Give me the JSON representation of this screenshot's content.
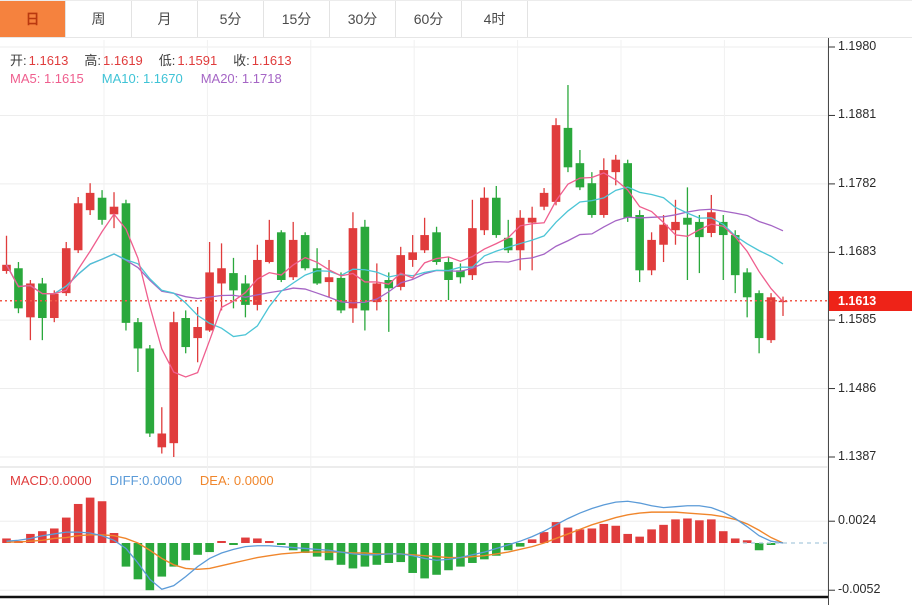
{
  "toolbar": {
    "tabs": [
      {
        "label": "日",
        "active": true
      },
      {
        "label": "周",
        "active": false
      },
      {
        "label": "月",
        "active": false
      },
      {
        "label": "5分",
        "active": false
      },
      {
        "label": "15分",
        "active": false
      },
      {
        "label": "30分",
        "active": false
      },
      {
        "label": "60分",
        "active": false
      },
      {
        "label": "4时",
        "active": false
      }
    ]
  },
  "main_chart": {
    "legend": {
      "open_label": "开:",
      "open": "1.1613",
      "high_label": "高:",
      "high": "1.1619",
      "low_label": "低:",
      "low": "1.1591",
      "close_label": "收:",
      "close": "1.1613"
    },
    "ma_legend": {
      "ma5_label": "MA5:",
      "ma5": "1.1615",
      "ma10_label": "MA10:",
      "ma10": "1.1670",
      "ma20_label": "MA20:",
      "ma20": "1.1718"
    },
    "y_axis": [
      "1.1980",
      "1.1881",
      "1.1782",
      "1.1683",
      "1.1585",
      "1.1486",
      "1.1387"
    ],
    "price_tag": "1.1613"
  },
  "macd_panel": {
    "legend": {
      "macd_label": "MACD:",
      "macd": "0.0000",
      "diff_label": "DIFF:",
      "diff": "0.0000",
      "dea_label": "DEA:",
      "dea": "0.0000"
    },
    "y_axis": [
      "0.0024",
      "-0.0052"
    ]
  },
  "chart_data": {
    "type": "candlestick+macd",
    "timeframe": "日",
    "price_axis": {
      "min": 1.1387,
      "max": 1.198,
      "ticks": [
        1.198,
        1.1881,
        1.1782,
        1.1683,
        1.1585,
        1.1486,
        1.1387
      ]
    },
    "current_price": 1.1613,
    "last_bar": {
      "open": 1.1613,
      "high": 1.1619,
      "low": 1.1591,
      "close": 1.1613
    },
    "ma_periods": [
      5,
      10,
      20
    ],
    "ma_last_values": {
      "ma5": 1.1615,
      "ma10": 1.167,
      "ma20": 1.1718
    },
    "candles_ohlc": [
      [
        1.1656,
        1.1707,
        1.1652,
        1.1665
      ],
      [
        1.166,
        1.1669,
        1.1595,
        1.1602
      ],
      [
        1.1589,
        1.1643,
        1.1556,
        1.1638
      ],
      [
        1.1638,
        1.1646,
        1.1556,
        1.1588
      ],
      [
        1.1588,
        1.1628,
        1.1582,
        1.1623
      ],
      [
        1.1624,
        1.1698,
        1.162,
        1.1689
      ],
      [
        1.1686,
        1.1763,
        1.1682,
        1.1754
      ],
      [
        1.1744,
        1.1783,
        1.1737,
        1.1769
      ],
      [
        1.1762,
        1.1773,
        1.1723,
        1.173
      ],
      [
        1.1738,
        1.177,
        1.1718,
        1.1749
      ],
      [
        1.1754,
        1.1759,
        1.157,
        1.1581
      ],
      [
        1.1582,
        1.1588,
        1.151,
        1.1544
      ],
      [
        1.1544,
        1.1549,
        1.1416,
        1.1421
      ],
      [
        1.1401,
        1.1459,
        1.1392,
        1.1421
      ],
      [
        1.1407,
        1.1597,
        1.1387,
        1.1582
      ],
      [
        1.1588,
        1.1599,
        1.1537,
        1.1546
      ],
      [
        1.1559,
        1.1604,
        1.1524,
        1.1575
      ],
      [
        1.157,
        1.1698,
        1.1568,
        1.1654
      ],
      [
        1.1638,
        1.1696,
        1.1599,
        1.166
      ],
      [
        1.1653,
        1.1675,
        1.1602,
        1.1628
      ],
      [
        1.1638,
        1.165,
        1.1589,
        1.1607
      ],
      [
        1.1607,
        1.1694,
        1.1599,
        1.1672
      ],
      [
        1.1669,
        1.173,
        1.1667,
        1.1701
      ],
      [
        1.1712,
        1.1715,
        1.164,
        1.1643
      ],
      [
        1.1647,
        1.1727,
        1.1643,
        1.1701
      ],
      [
        1.1708,
        1.1712,
        1.1657,
        1.166
      ],
      [
        1.166,
        1.1689,
        1.1636,
        1.1638
      ],
      [
        1.164,
        1.1672,
        1.1618,
        1.1647
      ],
      [
        1.1646,
        1.1654,
        1.1595,
        1.1599
      ],
      [
        1.1602,
        1.1741,
        1.1581,
        1.1718
      ],
      [
        1.172,
        1.173,
        1.157,
        1.1599
      ],
      [
        1.1611,
        1.1667,
        1.1599,
        1.1638
      ],
      [
        1.1643,
        1.1654,
        1.1568,
        1.1631
      ],
      [
        1.1633,
        1.1691,
        1.1628,
        1.1679
      ],
      [
        1.1672,
        1.1708,
        1.1662,
        1.1683
      ],
      [
        1.1686,
        1.1733,
        1.1682,
        1.1708
      ],
      [
        1.1712,
        1.172,
        1.1665,
        1.1669
      ],
      [
        1.1669,
        1.1676,
        1.1614,
        1.1643
      ],
      [
        1.1657,
        1.1667,
        1.1638,
        1.1647
      ],
      [
        1.165,
        1.1759,
        1.1643,
        1.1718
      ],
      [
        1.1715,
        1.1777,
        1.1708,
        1.1762
      ],
      [
        1.1762,
        1.1779,
        1.1704,
        1.1708
      ],
      [
        1.1704,
        1.173,
        1.1682,
        1.1686
      ],
      [
        1.1686,
        1.1744,
        1.1657,
        1.1733
      ],
      [
        1.1726,
        1.1749,
        1.1657,
        1.1733
      ],
      [
        1.1749,
        1.1776,
        1.1744,
        1.1769
      ],
      [
        1.1756,
        1.1877,
        1.1751,
        1.1867
      ],
      [
        1.1863,
        1.1925,
        1.1799,
        1.1806
      ],
      [
        1.1812,
        1.1831,
        1.1773,
        1.1777
      ],
      [
        1.1783,
        1.1799,
        1.1733,
        1.1737
      ],
      [
        1.1737,
        1.1819,
        1.1733,
        1.1802
      ],
      [
        1.1799,
        1.1824,
        1.178,
        1.1817
      ],
      [
        1.1812,
        1.1817,
        1.1727,
        1.1733
      ],
      [
        1.1737,
        1.1744,
        1.164,
        1.1657
      ],
      [
        1.1657,
        1.1712,
        1.165,
        1.1701
      ],
      [
        1.1694,
        1.1737,
        1.1669,
        1.1723
      ],
      [
        1.1715,
        1.1759,
        1.1694,
        1.1727
      ],
      [
        1.1733,
        1.1777,
        1.1643,
        1.1723
      ],
      [
        1.1727,
        1.1737,
        1.1653,
        1.1705
      ],
      [
        1.1711,
        1.1766,
        1.1705,
        1.1741
      ],
      [
        1.1727,
        1.1737,
        1.1643,
        1.1708
      ],
      [
        1.1708,
        1.1715,
        1.1624,
        1.165
      ],
      [
        1.1654,
        1.166,
        1.1589,
        1.1618
      ],
      [
        1.1624,
        1.1628,
        1.1537,
        1.1559
      ],
      [
        1.1556,
        1.1624,
        1.1552,
        1.1618
      ],
      [
        1.1613,
        1.1619,
        1.1591,
        1.1613
      ]
    ],
    "macd": {
      "axis_ticks": [
        0.0024,
        -0.0052
      ],
      "hist": [
        0.0005,
        0.0002,
        0.001,
        0.0013,
        0.0016,
        0.0028,
        0.0043,
        0.005,
        0.0046,
        0.0011,
        -0.0026,
        -0.004,
        -0.0052,
        -0.0037,
        -0.0026,
        -0.0019,
        -0.0013,
        -0.001,
        0.0001,
        -0.0001,
        0.0006,
        0.0005,
        0.0001,
        -0.0001,
        -0.0008,
        -0.0011,
        -0.0015,
        -0.0019,
        -0.0024,
        -0.0028,
        -0.0026,
        -0.0024,
        -0.0022,
        -0.0021,
        -0.0033,
        -0.0039,
        -0.0035,
        -0.003,
        -0.0026,
        -0.0022,
        -0.0018,
        -0.0014,
        -0.0008,
        -0.0004,
        0.0004,
        0.0012,
        0.0023,
        0.0017,
        0.0015,
        0.0016,
        0.0021,
        0.0019,
        0.001,
        0.0007,
        0.0015,
        0.002,
        0.0026,
        0.0027,
        0.0025,
        0.0026,
        0.0013,
        0.0005,
        0.0003,
        -0.0008,
        -0.0001,
        0.0
      ],
      "diff": [
        0.0002,
        0.0003,
        0.0005,
        0.0008,
        0.001,
        0.0012,
        0.0012,
        0.0011,
        0.0008,
        0.0003,
        -0.0006,
        -0.0022,
        -0.004,
        -0.0051,
        -0.0047,
        -0.0037,
        -0.0026,
        -0.0017,
        -0.0011,
        -0.0007,
        -0.0004,
        -0.0003,
        -0.0003,
        -0.0004,
        -0.0005,
        -0.0006,
        -0.0007,
        -0.0008,
        -0.001,
        -0.0012,
        -0.0013,
        -0.0013,
        -0.0012,
        -0.0012,
        -0.0014,
        -0.0017,
        -0.0019,
        -0.0018,
        -0.0016,
        -0.0013,
        -0.001,
        -0.0006,
        -0.0002,
        0.0002,
        0.0007,
        0.0013,
        0.002,
        0.0027,
        0.0033,
        0.0038,
        0.0042,
        0.0045,
        0.0046,
        0.0044,
        0.0041,
        0.0039,
        0.004,
        0.0041,
        0.0041,
        0.0039,
        0.0034,
        0.0027,
        0.0018,
        0.0008,
        0.0002,
        0.0
      ],
      "dea": [
        0.0001,
        0.0001,
        0.0002,
        0.0003,
        0.0005,
        0.0006,
        0.0008,
        0.0009,
        0.0009,
        0.0008,
        0.0005,
        0.0,
        -0.0008,
        -0.0017,
        -0.0024,
        -0.0028,
        -0.0029,
        -0.0028,
        -0.0025,
        -0.0022,
        -0.0019,
        -0.0016,
        -0.0014,
        -0.0012,
        -0.0011,
        -0.001,
        -0.001,
        -0.001,
        -0.001,
        -0.0011,
        -0.0011,
        -0.0012,
        -0.0012,
        -0.0012,
        -0.0013,
        -0.0014,
        -0.0015,
        -0.0016,
        -0.0016,
        -0.0015,
        -0.0014,
        -0.0012,
        -0.001,
        -0.0007,
        -0.0004,
        0.0,
        0.0005,
        0.001,
        0.0015,
        0.002,
        0.0024,
        0.0028,
        0.0031,
        0.0033,
        0.0034,
        0.0034,
        0.0034,
        0.0033,
        0.0032,
        0.0031,
        0.0029,
        0.0026,
        0.0021,
        0.0014,
        0.0006,
        0.0
      ]
    },
    "colors": {
      "up": "#e03c3c",
      "down": "#2aa83c",
      "ma5": "#ef5e8e",
      "ma10": "#4cc5d6",
      "ma20": "#a565c5",
      "diff": "#5b9bd8",
      "dea": "#f0862c",
      "price_line": "#f25a4a",
      "price_tag_bg": "#ee2318",
      "active_tab": "#f5823e"
    }
  }
}
